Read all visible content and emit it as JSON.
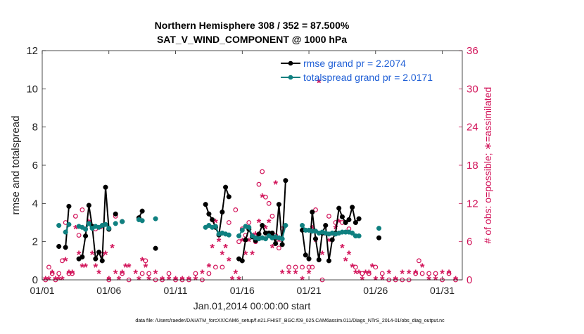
{
  "chart_data": {
    "type": "line",
    "title_line1": "Northern Hemisphere 308 / 352 = 87.500%",
    "title_line2": "SAT_V_WIND_COMPONENT @ 1000 hPa",
    "xlabel": "Jan.01,2014 00:00:00 start",
    "ylabel_left": "rmse and totalspread",
    "ylabel_right": "# of obs: o=possible; ∗=assimilated",
    "footer": "data file: /Users/raeder/DAI/ATM_forcXX/CAM6_setup/f.e21.FHIST_BGC.f09_025.CAM6assim.011/Diags_NTrS_2014-01/obs_diag_output.nc",
    "xlim": [
      1,
      32.5
    ],
    "ylim_left": [
      0,
      12
    ],
    "ylim_right": [
      0,
      36
    ],
    "x_ticks": [
      1,
      6,
      11,
      16,
      21,
      26,
      31
    ],
    "x_tick_labels": [
      "01/01",
      "01/06",
      "01/11",
      "01/16",
      "01/21",
      "01/26",
      "01/31"
    ],
    "y_ticks_left": [
      0,
      2,
      4,
      6,
      8,
      10,
      12
    ],
    "y_ticks_right": [
      0,
      6,
      12,
      18,
      24,
      30,
      36
    ],
    "colors": {
      "rmse": "#000000",
      "spread": "#0f8080",
      "obs": "#d2145a",
      "legend_text": "#1f5fd6"
    },
    "series": [
      {
        "name": "rmse grand pr = 2.2074",
        "key": "rmse",
        "x": [
          2.25,
          2.5,
          2.75,
          3.0,
          3.25,
          3.5,
          3.75,
          4.0,
          4.25,
          4.5,
          4.75,
          5.0,
          5.25,
          5.5,
          5.75,
          6.0,
          6.25,
          6.5,
          6.75,
          7.0,
          7.25,
          7.5,
          7.75,
          8.0,
          8.25,
          8.5,
          8.75,
          9.0,
          9.25,
          9.5,
          9.75,
          10.0,
          10.25,
          10.5,
          10.75,
          11.0,
          11.25,
          11.5,
          11.75,
          12.0,
          12.25,
          12.5,
          12.75,
          13.0,
          13.25,
          13.5,
          13.75,
          14.0,
          14.25,
          14.5,
          14.75,
          15.0,
          15.25,
          15.5,
          15.75,
          16.0,
          16.25,
          16.5,
          16.75,
          17.0,
          17.25,
          17.5,
          17.75,
          18.0,
          18.25,
          18.5,
          18.75,
          19.0,
          19.25,
          19.5,
          19.75,
          20.0,
          20.25,
          20.5,
          20.75,
          21.0,
          21.25,
          21.5,
          21.75,
          22.0,
          22.25,
          22.5,
          22.75,
          23.0,
          23.25,
          23.5,
          23.75,
          24.0,
          24.25,
          24.5,
          24.75,
          25.0,
          25.25,
          25.5,
          25.75,
          26.0,
          26.25
        ],
        "values": [
          1.75,
          null,
          1.7,
          3.85,
          null,
          null,
          1.1,
          1.2,
          2.3,
          3.9,
          2.8,
          1.1,
          1.45,
          1.0,
          4.85,
          2.65,
          null,
          3.45,
          null,
          3.05,
          null,
          null,
          null,
          null,
          3.25,
          3.6,
          null,
          null,
          null,
          1.65,
          null,
          null,
          null,
          null,
          null,
          null,
          null,
          null,
          null,
          null,
          null,
          null,
          null,
          null,
          3.95,
          3.45,
          3.15,
          2.75,
          2.35,
          3.55,
          4.85,
          4.35,
          null,
          null,
          1.1,
          1.0,
          2.1,
          2.65,
          2.25,
          2.05,
          2.4,
          2.85,
          2.45,
          2.45,
          2.45,
          1.9,
          3.95,
          1.85,
          5.2,
          null,
          null,
          null,
          null,
          2.6,
          1.3,
          1.1,
          3.55,
          2.15,
          1.05,
          2.45,
          2.85,
          1.0,
          2.1,
          2.45,
          3.75,
          3.3,
          3.0,
          3.15,
          3.8,
          3.0,
          3.2,
          null,
          null,
          null,
          null,
          null,
          2.2
        ],
        "legend_position": "top-right"
      },
      {
        "name": "totalspread grand pr = 2.0171",
        "key": "spread",
        "x": [
          2.25,
          2.5,
          2.75,
          3.0,
          3.25,
          3.5,
          3.75,
          4.0,
          4.25,
          4.5,
          4.75,
          5.0,
          5.25,
          5.5,
          5.75,
          6.0,
          6.25,
          6.5,
          6.75,
          7.0,
          7.25,
          7.5,
          7.75,
          8.0,
          8.25,
          8.5,
          8.75,
          9.0,
          9.25,
          9.5,
          9.75,
          10.0,
          10.25,
          10.5,
          10.75,
          11.0,
          11.25,
          11.5,
          11.75,
          12.0,
          12.25,
          12.5,
          12.75,
          13.0,
          13.25,
          13.5,
          13.75,
          14.0,
          14.25,
          14.5,
          14.75,
          15.0,
          15.25,
          15.5,
          15.75,
          16.0,
          16.25,
          16.5,
          16.75,
          17.0,
          17.25,
          17.5,
          17.75,
          18.0,
          18.25,
          18.5,
          18.75,
          19.0,
          19.25,
          19.5,
          19.75,
          20.0,
          20.25,
          20.5,
          20.75,
          21.0,
          21.25,
          21.5,
          21.75,
          22.0,
          22.25,
          22.5,
          22.75,
          23.0,
          23.25,
          23.5,
          23.75,
          24.0,
          24.25,
          24.5,
          24.75,
          25.0,
          25.25,
          25.5,
          25.75,
          26.0,
          26.25
        ],
        "values": [
          2.85,
          null,
          2.5,
          2.9,
          null,
          null,
          2.8,
          2.75,
          2.65,
          2.95,
          2.7,
          2.8,
          2.75,
          2.85,
          2.9,
          2.7,
          null,
          2.95,
          null,
          3.05,
          null,
          null,
          null,
          null,
          3.15,
          3.1,
          null,
          null,
          null,
          3.2,
          null,
          null,
          null,
          null,
          null,
          null,
          null,
          null,
          null,
          null,
          null,
          null,
          null,
          null,
          2.75,
          2.85,
          2.75,
          2.8,
          2.4,
          2.45,
          2.4,
          2.35,
          null,
          null,
          2.3,
          2.6,
          2.8,
          2.75,
          2.3,
          2.2,
          2.15,
          2.2,
          2.15,
          2.3,
          2.2,
          2.25,
          2.2,
          2.15,
          2.85,
          null,
          null,
          null,
          null,
          2.85,
          2.6,
          2.6,
          2.55,
          2.55,
          2.45,
          2.5,
          2.45,
          2.4,
          2.45,
          2.4,
          2.45,
          2.5,
          2.5,
          2.5,
          2.45,
          2.3,
          2.3,
          null,
          null,
          null,
          null,
          null,
          2.7
        ],
        "legend_position": "top-right"
      }
    ],
    "obs_possible": {
      "marker": "o",
      "x": [
        1.25,
        1.5,
        1.75,
        2.0,
        2.25,
        2.5,
        2.75,
        3.0,
        3.25,
        3.5,
        3.75,
        4.0,
        4.25,
        4.5,
        5.0,
        5.5,
        6.0,
        6.5,
        7.0,
        7.5,
        8.5,
        8.75,
        9.0,
        9.5,
        10.0,
        10.5,
        11.0,
        11.5,
        12.0,
        12.5,
        13.0,
        13.5,
        14.0,
        14.5,
        15.0,
        15.5,
        15.75,
        16.0,
        16.25,
        16.5,
        16.75,
        17.0,
        17.25,
        17.5,
        17.75,
        18.0,
        18.25,
        18.5,
        18.75,
        19.0,
        19.5,
        20.0,
        20.5,
        21.0,
        21.25,
        21.5,
        22.0,
        22.5,
        23.0,
        23.5,
        24.0,
        24.5,
        25.0,
        25.5,
        26.0,
        26.5,
        27.0,
        27.5,
        28.0,
        28.5,
        29.0,
        29.25,
        29.5,
        30.0,
        30.5,
        31.0,
        31.5,
        32.0
      ],
      "values": [
        0,
        2,
        1,
        0,
        1,
        3,
        9,
        1,
        1,
        10,
        7,
        11,
        8,
        9,
        8,
        4,
        0,
        10,
        1,
        0,
        1,
        3,
        1,
        0,
        0,
        1,
        0,
        0,
        0,
        1,
        0,
        1,
        2,
        2,
        9,
        11,
        6,
        8,
        7,
        9,
        7,
        6,
        15,
        17,
        13,
        12,
        10,
        7,
        5,
        8,
        2,
        2,
        2,
        2,
        2,
        11,
        0,
        10,
        9,
        9,
        8,
        2,
        1,
        1,
        2,
        1,
        0,
        0,
        0,
        0,
        1,
        3,
        1,
        1,
        1,
        0,
        1,
        0
      ]
    },
    "obs_assimilated": {
      "marker": "*",
      "x": [
        1.25,
        1.5,
        1.75,
        2.0,
        2.25,
        2.5,
        2.75,
        3.0,
        3.25,
        3.5,
        3.75,
        4.0,
        4.25,
        4.5,
        4.75,
        5.0,
        5.25,
        5.5,
        5.75,
        6.0,
        6.25,
        6.5,
        6.75,
        7.0,
        7.25,
        7.5,
        8.0,
        8.25,
        8.5,
        8.75,
        9.0,
        9.5,
        10.0,
        10.5,
        11.0,
        11.5,
        12.0,
        12.5,
        13.0,
        13.5,
        13.75,
        14.0,
        14.25,
        14.5,
        14.75,
        15.0,
        15.25,
        15.5,
        15.75,
        16.0,
        16.25,
        16.5,
        16.75,
        17.0,
        17.25,
        17.5,
        17.75,
        18.0,
        18.25,
        18.5,
        18.75,
        19.0,
        19.5,
        20.0,
        20.5,
        21.0,
        21.25,
        21.5,
        21.75,
        22.0,
        22.25,
        22.5,
        22.75,
        23.0,
        23.25,
        23.5,
        23.75,
        24.0,
        24.25,
        24.5,
        24.75,
        25.0,
        25.25,
        25.5,
        25.75,
        26.0,
        26.5,
        27.0,
        27.5,
        28.0,
        28.5,
        29.0,
        29.5,
        30.0,
        30.5,
        31.0,
        31.5,
        32.0
      ],
      "values": [
        0,
        0,
        1,
        0,
        0,
        0,
        3,
        1,
        1,
        8,
        4,
        2,
        2,
        9,
        4,
        2,
        1,
        8,
        4,
        0,
        5,
        1,
        0,
        1,
        2,
        2,
        1,
        0,
        3,
        2,
        0,
        1,
        0,
        0,
        0,
        0,
        0,
        0,
        1,
        2,
        5,
        9,
        6,
        4,
        5,
        3,
        0,
        1,
        0,
        6,
        4,
        6,
        4,
        7,
        9,
        13,
        8,
        9,
        5,
        15,
        6,
        1,
        1,
        1,
        0,
        1,
        8,
        6,
        31,
        4,
        7,
        6,
        7,
        8,
        9,
        5,
        3,
        4,
        2,
        1,
        1,
        0,
        1,
        1,
        2,
        0,
        0,
        1,
        0,
        1,
        1,
        1,
        2,
        0,
        0,
        1,
        1,
        0
      ]
    }
  }
}
